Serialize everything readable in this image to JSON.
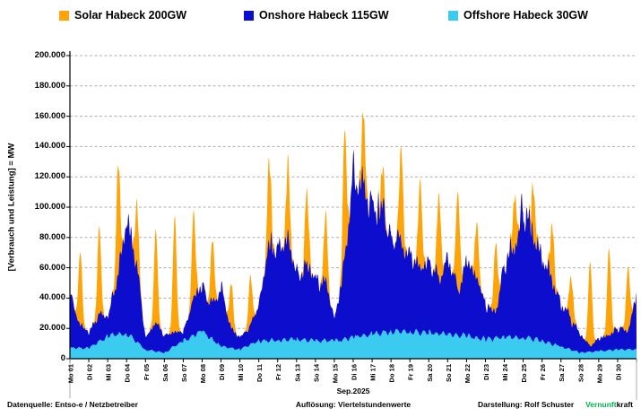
{
  "page": {
    "footer": {
      "source": "Datenquelle: Entso-e  / Netzbetreiber",
      "resolution": "Auflösung: Viertelstundenwerte",
      "attribution": "Darstellung:  Rolf Schuster",
      "brand_green": "Vernunft",
      "brand_black": "kraft",
      "brand_green_color": "#00B050"
    }
  },
  "chart_data": {
    "type": "area",
    "stacking": "stacked",
    "legend_position": "top",
    "grid": "horizontal-dashed",
    "resolution": "Viertelstundenwerte (quarter-hour values)",
    "x_axis": {
      "title": "Sep.2025",
      "labels": [
        "Mo 01",
        "Di 02",
        "Mi 03",
        "Do 04",
        "Fr 05",
        "Sa 06",
        "So 07",
        "Mo 08",
        "Di 09",
        "Mi 10",
        "Do 11",
        "Fr 12",
        "Sa 13",
        "So 14",
        "Mo 15",
        "Di 16",
        "Mi 17",
        "Do 18",
        "Fr 19",
        "Sa 20",
        "So 21",
        "Mo 22",
        "Di 23",
        "Mi 24",
        "Do 25",
        "Fr 26",
        "Sa 27",
        "So 28",
        "Mo 29",
        "Di 30"
      ]
    },
    "y_axis": {
      "title": "[Verbrauch und Leistung] =  MW",
      "min": 0,
      "max": 200000,
      "step": 20000,
      "tick_labels": [
        "0",
        "20.000",
        "40.000",
        "60.000",
        "80.000",
        "100.000",
        "120.000",
        "140.000",
        "160.000",
        "180.000",
        "200.000"
      ]
    },
    "series": [
      {
        "name": "Solar Habeck 200GW",
        "color": "#FFA408",
        "role": "solar"
      },
      {
        "name": "Onshore Habeck 115GW",
        "color": "#0D0DCE",
        "role": "onshore"
      },
      {
        "name": "Offshore Habeck 30GW",
        "color": "#3CCBF0",
        "role": "offshore"
      }
    ],
    "series_params": {
      "comment_units": "MW, estimated from gridlines; days 01-30 Sep 2025",
      "solar_peak_total_MW": [
        70000,
        82000,
        127000,
        108000,
        87000,
        89000,
        94000,
        79000,
        49000,
        50000,
        130000,
        125000,
        111000,
        94000,
        149000,
        152000,
        123000,
        137000,
        117000,
        108000,
        112000,
        92000,
        76000,
        112000,
        115000,
        92000,
        58000,
        65000,
        73000,
        60000
      ],
      "onshore_start_MW": [
        34000,
        10000,
        12000,
        76000,
        8000,
        12000,
        6000,
        30000,
        40000,
        8000,
        25000,
        60000,
        44000,
        40000,
        14000,
        112000,
        88000,
        62000,
        50000,
        48000,
        52000,
        48000,
        22000,
        48000,
        86000,
        52000,
        28000,
        12000,
        8000,
        14000,
        36000
      ],
      "onshore_noon_MW": [
        15000,
        18000,
        39000,
        50000,
        19000,
        9000,
        25000,
        22000,
        12000,
        12000,
        62000,
        64000,
        49000,
        38000,
        53000,
        96000,
        84000,
        57000,
        42000,
        35000,
        30000,
        40000,
        17000,
        62000,
        68000,
        42000,
        20000,
        4000,
        10000,
        12000
      ],
      "offshore_MW": [
        7000,
        7000,
        15000,
        17000,
        6000,
        4000,
        12000,
        18000,
        8000,
        6000,
        12000,
        12000,
        13000,
        12000,
        12000,
        14000,
        16000,
        18000,
        18000,
        17000,
        16000,
        15000,
        13000,
        14000,
        14000,
        12000,
        8000,
        4000,
        5000,
        6000
      ]
    }
  }
}
